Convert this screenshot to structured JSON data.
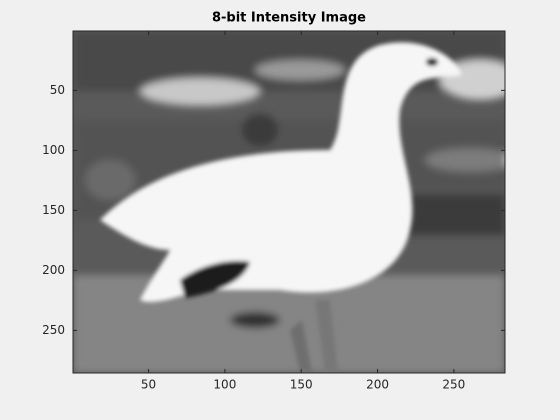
{
  "chart_data": {
    "type": "image",
    "title": "8-bit Intensity Image",
    "xlim": [
      0.5,
      283.5
    ],
    "ylim": [
      0.5,
      285.5
    ],
    "ydir": "reverse",
    "xticks": [
      50,
      100,
      150,
      200,
      250
    ],
    "yticks": [
      50,
      100,
      150,
      200,
      250
    ]
  }
}
